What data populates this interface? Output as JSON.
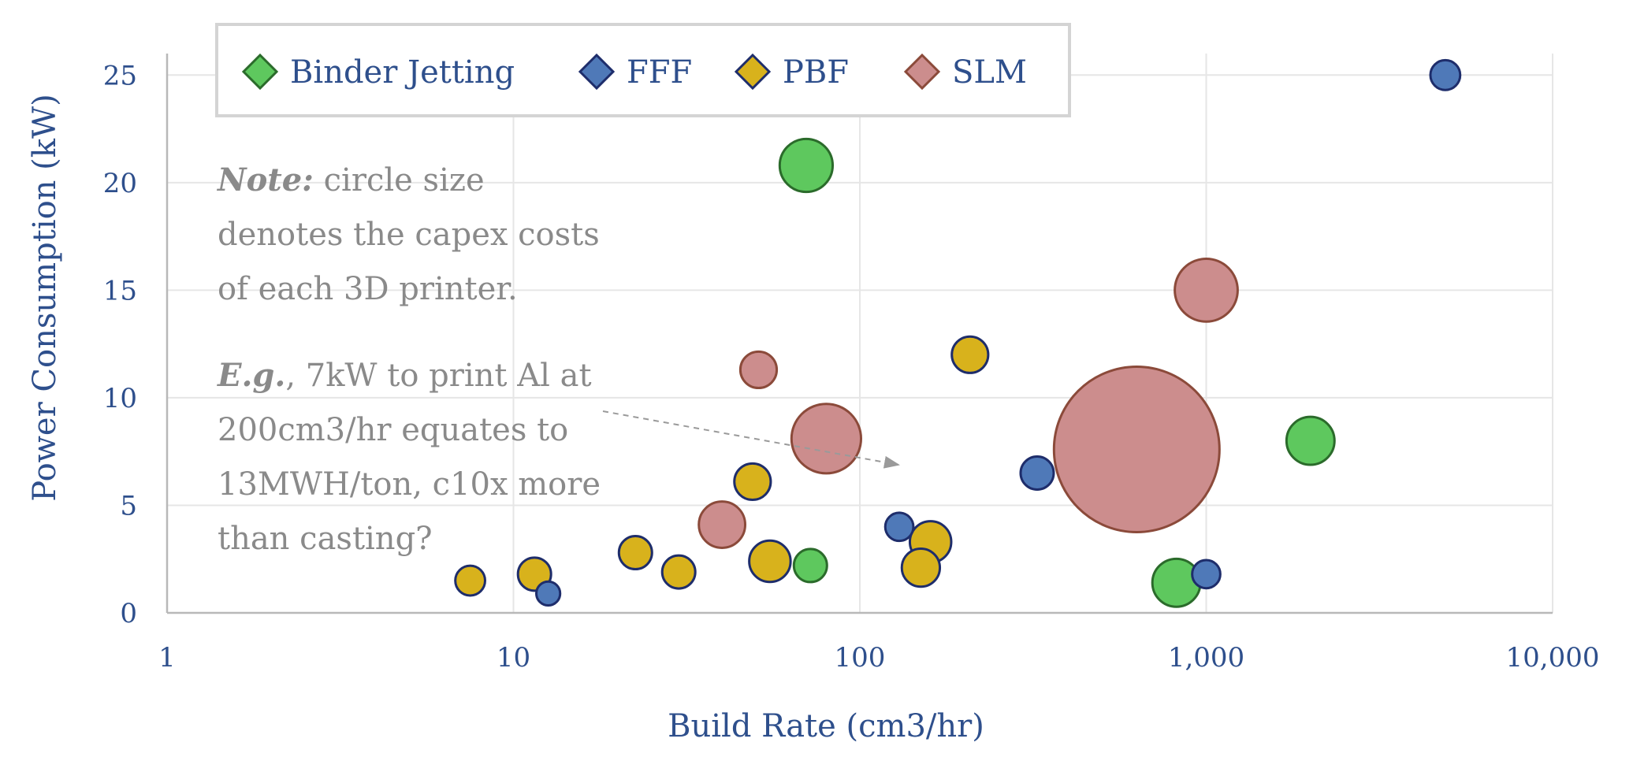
{
  "chart_data": {
    "type": "scatter",
    "subtype": "bubble",
    "xlabel": "Build Rate (cm3/hr)",
    "ylabel": "Power Consumption (kW)",
    "x_scale": "log",
    "xlim": [
      1,
      10000
    ],
    "ylim": [
      0,
      26
    ],
    "x_ticks": [
      "1",
      "10",
      "100",
      "1,000",
      "10,000"
    ],
    "x_tick_values": [
      1,
      10,
      100,
      1000,
      10000
    ],
    "y_ticks": [
      "0",
      "5",
      "10",
      "15",
      "20",
      "25"
    ],
    "y_tick_values": [
      0,
      5,
      10,
      15,
      20,
      25
    ],
    "grid": true,
    "legend_position": "top-left",
    "size_encodes": "capex costs",
    "series": [
      {
        "name": "Binder Jetting",
        "color": "#5ec85e",
        "edge": "#2b6b2b",
        "points": [
          {
            "x": 70,
            "y": 20.8,
            "size": 1.6
          },
          {
            "x": 72,
            "y": 2.2,
            "size": 1.0
          },
          {
            "x": 820,
            "y": 1.4,
            "size": 1.45
          },
          {
            "x": 2000,
            "y": 8.0,
            "size": 1.45
          }
        ]
      },
      {
        "name": "FFF",
        "color": "#4f79b8",
        "edge": "#1e2d6b",
        "points": [
          {
            "x": 4900,
            "y": 25.0,
            "size": 0.9
          },
          {
            "x": 325,
            "y": 6.5,
            "size": 1.0
          },
          {
            "x": 130,
            "y": 4.0,
            "size": 0.85
          },
          {
            "x": 1000,
            "y": 1.8,
            "size": 0.85
          },
          {
            "x": 12.6,
            "y": 0.9,
            "size": 0.72
          }
        ]
      },
      {
        "name": "PBF",
        "color": "#d8b21c",
        "edge": "#1e2d6b",
        "points": [
          {
            "x": 208,
            "y": 12.0,
            "size": 1.1
          },
          {
            "x": 49,
            "y": 6.1,
            "size": 1.1
          },
          {
            "x": 160,
            "y": 3.3,
            "size": 1.25
          },
          {
            "x": 150,
            "y": 2.1,
            "size": 1.15
          },
          {
            "x": 55,
            "y": 2.4,
            "size": 1.25
          },
          {
            "x": 22.5,
            "y": 2.8,
            "size": 1.0
          },
          {
            "x": 30,
            "y": 1.9,
            "size": 1.0
          },
          {
            "x": 11.5,
            "y": 1.8,
            "size": 1.0
          },
          {
            "x": 7.5,
            "y": 1.5,
            "size": 0.9
          }
        ]
      },
      {
        "name": "SLM",
        "color": "#cc8d8d",
        "edge": "#8b4a3a",
        "points": [
          {
            "x": 1000,
            "y": 15.0,
            "size": 1.9
          },
          {
            "x": 51,
            "y": 11.3,
            "size": 1.1
          },
          {
            "x": 80,
            "y": 8.1,
            "size": 2.1
          },
          {
            "x": 40,
            "y": 4.1,
            "size": 1.4
          },
          {
            "x": 630,
            "y": 7.6,
            "size": 5.0
          }
        ]
      }
    ],
    "annotations": [
      {
        "lines": [
          [
            {
              "text": "Note:",
              "strong": true
            },
            {
              "text": " circle size"
            }
          ],
          [
            {
              "text": "denotes the capex costs"
            }
          ],
          [
            {
              "text": "of each 3D printer."
            }
          ]
        ]
      },
      {
        "lines": [
          [
            {
              "text": "E.g.",
              "strong": true
            },
            {
              "text": ", 7kW to print Al at"
            }
          ],
          [
            {
              "text": "200cm3/hr equates to"
            }
          ],
          [
            {
              "text": "13MWH/ton, c10x more"
            }
          ],
          [
            {
              "text": "than casting?"
            }
          ]
        ]
      }
    ]
  }
}
